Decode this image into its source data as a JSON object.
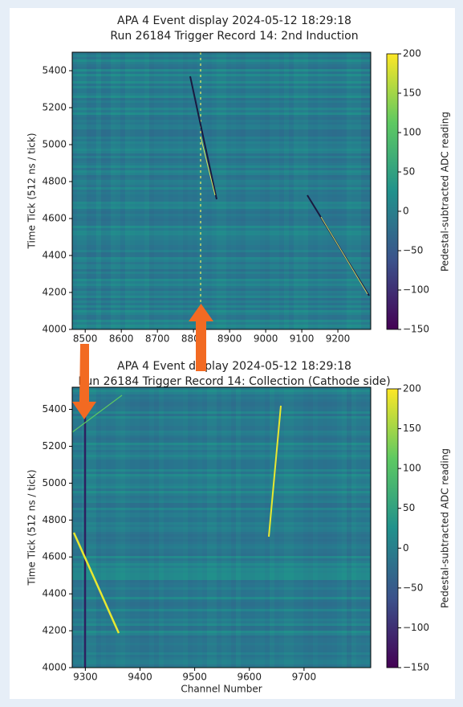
{
  "chart_data": [
    {
      "type": "heatmap",
      "title": "APA 4 Event display 2024-05-12 18:29:18",
      "subtitle": "Run 26184 Trigger Record 14: 2nd Induction",
      "y_label": "Time Tick (512 ns / tick)",
      "xlim": [
        8464,
        9291
      ],
      "xticks": [
        8500,
        8600,
        8700,
        8800,
        8900,
        9000,
        9100,
        9200
      ],
      "ylim": [
        4000,
        5500
      ],
      "yticks": [
        4000,
        4200,
        4400,
        4600,
        4800,
        5000,
        5200,
        5400
      ],
      "colorbar_label": "Pedestal-subtracted ADC reading",
      "colormap": "viridis",
      "clim": [
        -150,
        200
      ],
      "cticks": [
        {
          "value": -150,
          "label": "−150"
        },
        {
          "value": -100,
          "label": "−100"
        },
        {
          "value": -50,
          "label": "−50"
        },
        0,
        50,
        100,
        150,
        200
      ]
    },
    {
      "type": "heatmap",
      "title": "APA 4 Event display 2024-05-12 18:29:18",
      "subtitle": "Run 26184 Trigger Record 14: Collection (Cathode side)",
      "y_label": "Time Tick (512 ns / tick)",
      "x_label": "Channel Number",
      "xlim": [
        9276,
        9822
      ],
      "xticks": [
        9300,
        9400,
        9500,
        9600,
        9700
      ],
      "ylim": [
        4000,
        5520
      ],
      "yticks": [
        4000,
        4200,
        4400,
        4600,
        4800,
        5000,
        5200,
        5400
      ],
      "colorbar_label": "Pedestal-subtracted ADC reading",
      "colormap": "viridis",
      "clim": [
        -150,
        200
      ],
      "cticks": [
        {
          "value": -150,
          "label": "−150"
        },
        {
          "value": -100,
          "label": "−100"
        },
        {
          "value": -50,
          "label": "−50"
        },
        0,
        50,
        100,
        150,
        200
      ]
    }
  ]
}
